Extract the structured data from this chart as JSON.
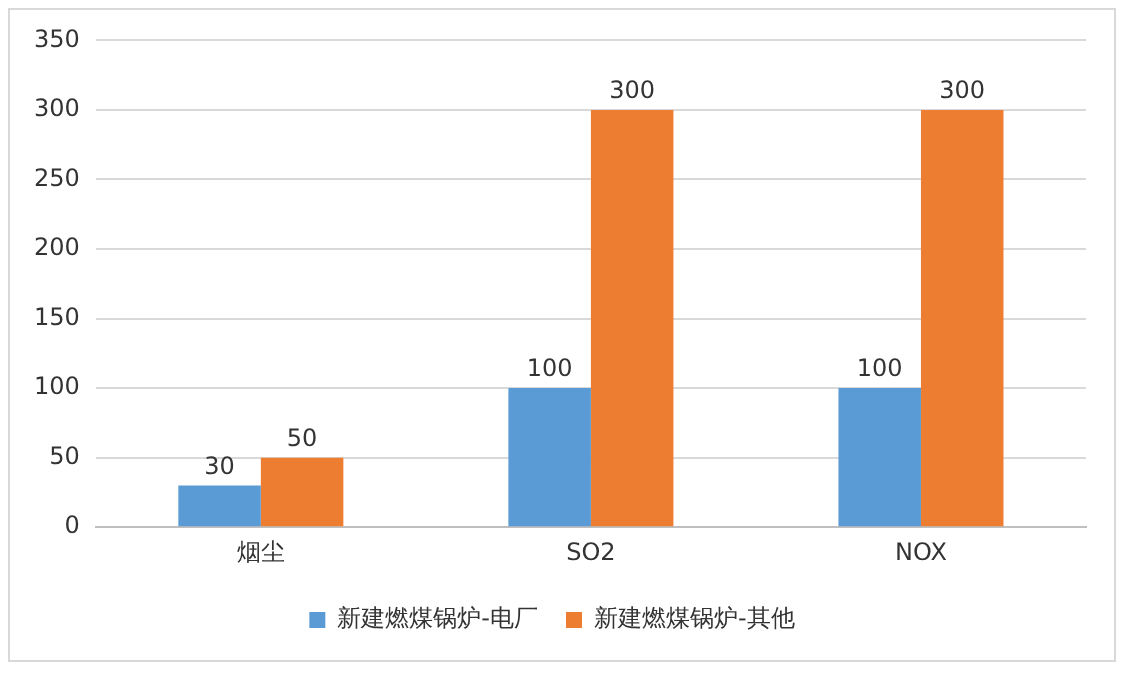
{
  "chart_data": {
    "type": "bar",
    "categories": [
      "烟尘",
      "SO2",
      "NOX"
    ],
    "series": [
      {
        "name": "新建燃煤锅炉-电厂",
        "color": "#5b9bd5",
        "values": [
          30,
          100,
          100
        ]
      },
      {
        "name": "新建燃煤锅炉-其他",
        "color": "#ed7d31",
        "values": [
          50,
          300,
          300
        ]
      }
    ],
    "ylim": [
      0,
      350
    ],
    "yticks": [
      0,
      50,
      100,
      150,
      200,
      250,
      300,
      350
    ],
    "grid": "y",
    "legend": "bottom",
    "data_labels": true
  }
}
